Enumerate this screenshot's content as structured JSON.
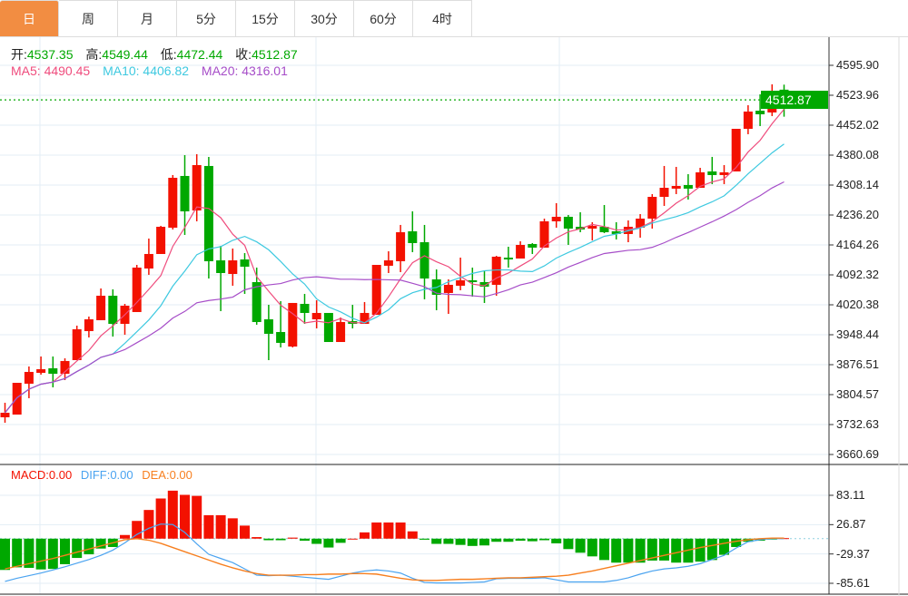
{
  "tabs": [
    {
      "label": "日",
      "active": true
    },
    {
      "label": "周"
    },
    {
      "label": "月"
    },
    {
      "label": "5分"
    },
    {
      "label": "15分"
    },
    {
      "label": "30分"
    },
    {
      "label": "60分"
    },
    {
      "label": "4时"
    }
  ],
  "ohlc": {
    "open_label": "开:",
    "open": "4537.35",
    "high_label": "高:",
    "high": "4549.44",
    "low_label": "低:",
    "low": "4472.44",
    "close_label": "收:",
    "close": "4512.87"
  },
  "ma": {
    "ma5": "MA5: 4490.45",
    "ma10": "MA10: 4406.82",
    "ma20": "MA20: 4316.01"
  },
  "macd_legend": {
    "macd": "MACD:0.00",
    "diff": "DIFF:0.00",
    "dea": "DEA:0.00"
  },
  "current_price": "4512.87",
  "colors": {
    "up": "#f31100",
    "down": "#00a800",
    "ma5": "#ef4c7d",
    "ma10": "#3ec9e0",
    "ma20": "#a64dc8",
    "diff": "#4aa3f0",
    "dea": "#f77f1f",
    "tab_active": "#f28d42"
  },
  "chart_data": {
    "type": "candlestick",
    "price_axis": [
      "4595.90",
      "4523.96",
      "4452.02",
      "4380.08",
      "4308.14",
      "4236.20",
      "4164.26",
      "4092.32",
      "4020.38",
      "3948.44",
      "3876.51",
      "3804.57",
      "3732.63",
      "3660.69"
    ],
    "price_range": [
      3660.69,
      4595.9
    ],
    "macd_axis": [
      "83.11",
      "26.87",
      "-29.37",
      "-85.61"
    ],
    "macd_range": [
      -85.61,
      83.11
    ],
    "candles": [
      [
        3750.1,
        3785.0,
        3737.0,
        3761.0
      ],
      [
        3756.6,
        3832.9,
        3756.6,
        3832.9
      ],
      [
        3830.8,
        3872.2,
        3795.9,
        3859.1
      ],
      [
        3856.9,
        3896.2,
        3852.6,
        3865.6
      ],
      [
        3867.8,
        3896.2,
        3822.0,
        3854.7
      ],
      [
        3854.7,
        3891.8,
        3839.5,
        3885.3
      ],
      [
        3887.4,
        3970.3,
        3887.4,
        3961.6
      ],
      [
        3957.2,
        3992.1,
        3941.9,
        3985.5
      ],
      [
        3983.4,
        4059.7,
        3983.4,
        4042.2
      ],
      [
        4042.2,
        4057.5,
        3944.1,
        3974.6
      ],
      [
        3974.6,
        4022.6,
        3948.5,
        4018.2
      ],
      [
        4003.0,
        4116.3,
        4003.0,
        4109.8
      ],
      [
        4107.6,
        4179.6,
        4092.4,
        4142.5
      ],
      [
        4142.5,
        4210.1,
        4142.5,
        4207.9
      ],
      [
        4205.7,
        4332.2,
        4201.4,
        4325.6
      ],
      [
        4330.0,
        4380.1,
        4188.3,
        4245.0
      ],
      [
        4247.1,
        4382.3,
        4221.0,
        4356.1
      ],
      [
        4354.0,
        4375.8,
        4083.6,
        4125.1
      ],
      [
        4127.2,
        4162.1,
        4005.2,
        4096.7
      ],
      [
        4094.5,
        4155.6,
        4066.2,
        4127.2
      ],
      [
        4129.4,
        4144.7,
        4046.6,
        4112.0
      ],
      [
        4074.9,
        4109.8,
        3972.5,
        3979.0
      ],
      [
        3985.5,
        4020.4,
        3887.4,
        3950.7
      ],
      [
        3955.0,
        4029.1,
        3918.0,
        3928.9
      ],
      [
        3920.1,
        4024.8,
        3918.0,
        4024.8
      ],
      [
        4022.6,
        4046.6,
        3974.6,
        4000.8
      ],
      [
        3985.5,
        4031.3,
        3963.7,
        4000.8
      ],
      [
        4000.8,
        4000.8,
        3931.0,
        3931.0
      ],
      [
        3931.0,
        3989.9,
        3931.0,
        3979.0
      ],
      [
        3981.2,
        4020.4,
        3963.7,
        3974.6
      ],
      [
        3974.6,
        4027.0,
        3974.6,
        4000.8
      ],
      [
        3996.4,
        4116.3,
        3996.4,
        4116.3
      ],
      [
        4114.2,
        4149.0,
        4096.7,
        4127.2
      ],
      [
        4125.1,
        4212.3,
        4098.9,
        4194.8
      ],
      [
        4197.0,
        4245.0,
        4146.9,
        4168.7
      ],
      [
        4170.8,
        4212.3,
        4033.5,
        4083.6
      ],
      [
        4081.5,
        4105.4,
        4007.3,
        4044.4
      ],
      [
        4048.8,
        4081.5,
        3998.6,
        4068.4
      ],
      [
        4066.2,
        4133.8,
        4055.3,
        4079.3
      ],
      [
        4079.3,
        4109.8,
        4040.0,
        4074.9
      ],
      [
        4074.9,
        4101.1,
        4024.8,
        4064.0
      ],
      [
        4068.4,
        4138.1,
        4042.2,
        4136.0
      ],
      [
        4133.8,
        4159.9,
        4109.8,
        4129.4
      ],
      [
        4131.6,
        4173.0,
        4131.6,
        4164.3
      ],
      [
        4166.5,
        4168.7,
        4142.5,
        4157.8
      ],
      [
        4157.8,
        4227.5,
        4157.8,
        4221.0
      ],
      [
        4221.0,
        4264.6,
        4205.7,
        4231.9
      ],
      [
        4231.9,
        4236.2,
        4164.3,
        4203.5
      ],
      [
        4207.9,
        4242.8,
        4194.8,
        4201.4
      ],
      [
        4203.5,
        4218.8,
        4175.2,
        4210.1
      ],
      [
        4207.9,
        4260.2,
        4192.6,
        4194.8
      ],
      [
        4197.0,
        4218.8,
        4177.4,
        4190.5
      ],
      [
        4190.5,
        4223.2,
        4170.8,
        4207.9
      ],
      [
        4205.7,
        4238.4,
        4181.7,
        4227.5
      ],
      [
        4227.5,
        4286.4,
        4203.5,
        4279.8
      ],
      [
        4279.8,
        4354.0,
        4258.0,
        4301.6
      ],
      [
        4299.5,
        4351.8,
        4286.4,
        4306.0
      ],
      [
        4308.2,
        4334.3,
        4273.3,
        4299.5
      ],
      [
        4301.6,
        4349.6,
        4301.6,
        4338.7
      ],
      [
        4340.9,
        4375.8,
        4310.4,
        4332.2
      ],
      [
        4332.2,
        4356.1,
        4310.4,
        4338.7
      ],
      [
        4340.9,
        4443.3,
        4340.9,
        4443.3
      ],
      [
        4443.3,
        4500.0,
        4430.3,
        4484.8
      ],
      [
        4486.9,
        4526.2,
        4449.9,
        4478.2
      ],
      [
        4482.6,
        4550.2,
        4473.9,
        4532.7
      ],
      [
        4537.35,
        4549.44,
        4472.44,
        4512.87
      ]
    ],
    "macd": [
      -60,
      -55,
      -56,
      -59,
      -58,
      -49,
      -37,
      -30,
      -19,
      -16,
      7,
      34,
      55,
      77,
      92,
      84,
      82,
      45,
      45,
      39,
      25,
      3,
      -3,
      -3,
      2,
      -4,
      -10,
      -17,
      -8,
      0,
      12,
      31,
      31,
      31,
      14,
      -2,
      -10,
      -10,
      -12,
      -14,
      -13,
      -6,
      -6,
      -4,
      -5,
      -3,
      -9,
      -20,
      -27,
      -34,
      -41,
      -46,
      -46,
      -46,
      -42,
      -42,
      -46,
      -46,
      -44,
      -41,
      -31,
      -16,
      -6,
      -4,
      -1,
      1
    ],
    "diff": [
      -82,
      -76,
      -71,
      -66,
      -60,
      -54,
      -47,
      -40,
      -32,
      -22,
      -8,
      8,
      20,
      28,
      27,
      12,
      -10,
      -30,
      -38,
      -46,
      -58,
      -70,
      -71,
      -70,
      -72,
      -74,
      -76,
      -78,
      -72,
      -66,
      -62,
      -60,
      -62,
      -66,
      -76,
      -84,
      -85,
      -85,
      -85,
      -84,
      -83,
      -77,
      -76,
      -76,
      -76,
      -75,
      -79,
      -83,
      -83,
      -83,
      -83,
      -80,
      -75,
      -68,
      -62,
      -58,
      -56,
      -53,
      -48,
      -40,
      -32,
      -18,
      -6,
      -2,
      0,
      0
    ],
    "dea": [
      -58,
      -53,
      -48,
      -43,
      -38,
      -32,
      -26,
      -20,
      -14,
      -8,
      -2,
      0,
      -3,
      -9,
      -17,
      -25,
      -33,
      -41,
      -49,
      -56,
      -62,
      -67,
      -70,
      -70,
      -70,
      -69,
      -69,
      -68,
      -68,
      -67,
      -67,
      -68,
      -72,
      -76,
      -79,
      -80,
      -80,
      -79,
      -78,
      -78,
      -77,
      -76,
      -75,
      -75,
      -74,
      -73,
      -72,
      -70,
      -66,
      -62,
      -57,
      -52,
      -47,
      -42,
      -37,
      -32,
      -27,
      -22,
      -17,
      -13,
      -9,
      -5,
      -2,
      0,
      1,
      1
    ]
  }
}
